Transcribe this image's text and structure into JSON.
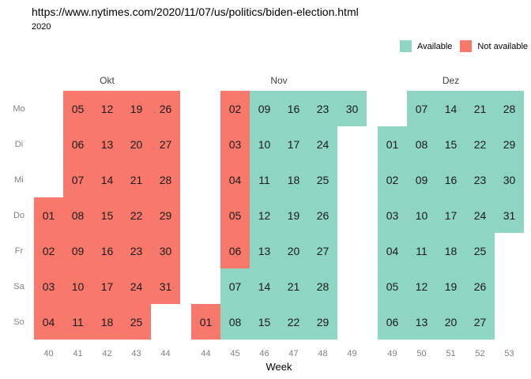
{
  "header": {
    "url": "https://www.nytimes.com/2020/11/07/us/politics/biden-election.html",
    "year": "2020"
  },
  "colors": {
    "available": "#8ED5C3",
    "not_available": "#F8796C",
    "axis_text": "#808080",
    "month_text": "#404040",
    "day_text": "#1a1a1a"
  },
  "chart_data": {
    "type": "heatmap",
    "title": "https://www.nytimes.com/2020/11/07/us/politics/biden-election.html",
    "subtitle": "2020",
    "xlabel": "Week",
    "legend_position": "top-right",
    "grid": "off",
    "weekday_labels": [
      "Mo",
      "Di",
      "Mi",
      "Do",
      "Fr",
      "Sa",
      "So"
    ],
    "legend": [
      {
        "label": "Available",
        "status": "A",
        "color": "#8ED5C3"
      },
      {
        "label": "Not available",
        "status": "N",
        "color": "#F8796C"
      }
    ],
    "months": [
      {
        "name": "Okt",
        "weeks": [
          "40",
          "41",
          "42",
          "43",
          "44"
        ],
        "days": [
          [
            "",
            "05",
            "12",
            "19",
            "26"
          ],
          [
            "",
            "06",
            "13",
            "20",
            "27"
          ],
          [
            "",
            "07",
            "14",
            "21",
            "28"
          ],
          [
            "01",
            "08",
            "15",
            "22",
            "29"
          ],
          [
            "02",
            "09",
            "16",
            "23",
            "30"
          ],
          [
            "03",
            "10",
            "17",
            "24",
            "31"
          ],
          [
            "04",
            "11",
            "18",
            "25",
            ""
          ]
        ],
        "status": [
          [
            "",
            "N",
            "N",
            "N",
            "N"
          ],
          [
            "",
            "N",
            "N",
            "N",
            "N"
          ],
          [
            "",
            "N",
            "N",
            "N",
            "N"
          ],
          [
            "N",
            "N",
            "N",
            "N",
            "N"
          ],
          [
            "N",
            "N",
            "N",
            "N",
            "N"
          ],
          [
            "N",
            "N",
            "N",
            "N",
            "N"
          ],
          [
            "N",
            "N",
            "N",
            "N",
            ""
          ]
        ]
      },
      {
        "name": "Nov",
        "weeks": [
          "44",
          "45",
          "46",
          "47",
          "48",
          "49"
        ],
        "days": [
          [
            "",
            "02",
            "09",
            "16",
            "23",
            "30"
          ],
          [
            "",
            "03",
            "10",
            "17",
            "24",
            ""
          ],
          [
            "",
            "04",
            "11",
            "18",
            "25",
            ""
          ],
          [
            "",
            "05",
            "12",
            "19",
            "26",
            ""
          ],
          [
            "",
            "06",
            "13",
            "20",
            "27",
            ""
          ],
          [
            "",
            "07",
            "14",
            "21",
            "28",
            ""
          ],
          [
            "01",
            "08",
            "15",
            "22",
            "29",
            ""
          ]
        ],
        "status": [
          [
            "",
            "N",
            "A",
            "A",
            "A",
            "A"
          ],
          [
            "",
            "N",
            "A",
            "A",
            "A",
            ""
          ],
          [
            "",
            "N",
            "A",
            "A",
            "A",
            ""
          ],
          [
            "",
            "N",
            "A",
            "A",
            "A",
            ""
          ],
          [
            "",
            "N",
            "A",
            "A",
            "A",
            ""
          ],
          [
            "",
            "A",
            "A",
            "A",
            "A",
            ""
          ],
          [
            "N",
            "A",
            "A",
            "A",
            "A",
            ""
          ]
        ]
      },
      {
        "name": "Dez",
        "weeks": [
          "49",
          "50",
          "51",
          "52",
          "53"
        ],
        "days": [
          [
            "",
            "07",
            "14",
            "21",
            "28"
          ],
          [
            "01",
            "08",
            "15",
            "22",
            "29"
          ],
          [
            "02",
            "09",
            "16",
            "23",
            "30"
          ],
          [
            "03",
            "10",
            "17",
            "24",
            "31"
          ],
          [
            "04",
            "11",
            "18",
            "25",
            ""
          ],
          [
            "05",
            "12",
            "19",
            "26",
            ""
          ],
          [
            "06",
            "13",
            "20",
            "27",
            ""
          ]
        ],
        "status": [
          [
            "",
            "A",
            "A",
            "A",
            "A"
          ],
          [
            "A",
            "A",
            "A",
            "A",
            "A"
          ],
          [
            "A",
            "A",
            "A",
            "A",
            "A"
          ],
          [
            "A",
            "A",
            "A",
            "A",
            "A"
          ],
          [
            "A",
            "A",
            "A",
            "A",
            ""
          ],
          [
            "A",
            "A",
            "A",
            "A",
            ""
          ],
          [
            "A",
            "A",
            "A",
            "A",
            ""
          ]
        ]
      }
    ]
  }
}
